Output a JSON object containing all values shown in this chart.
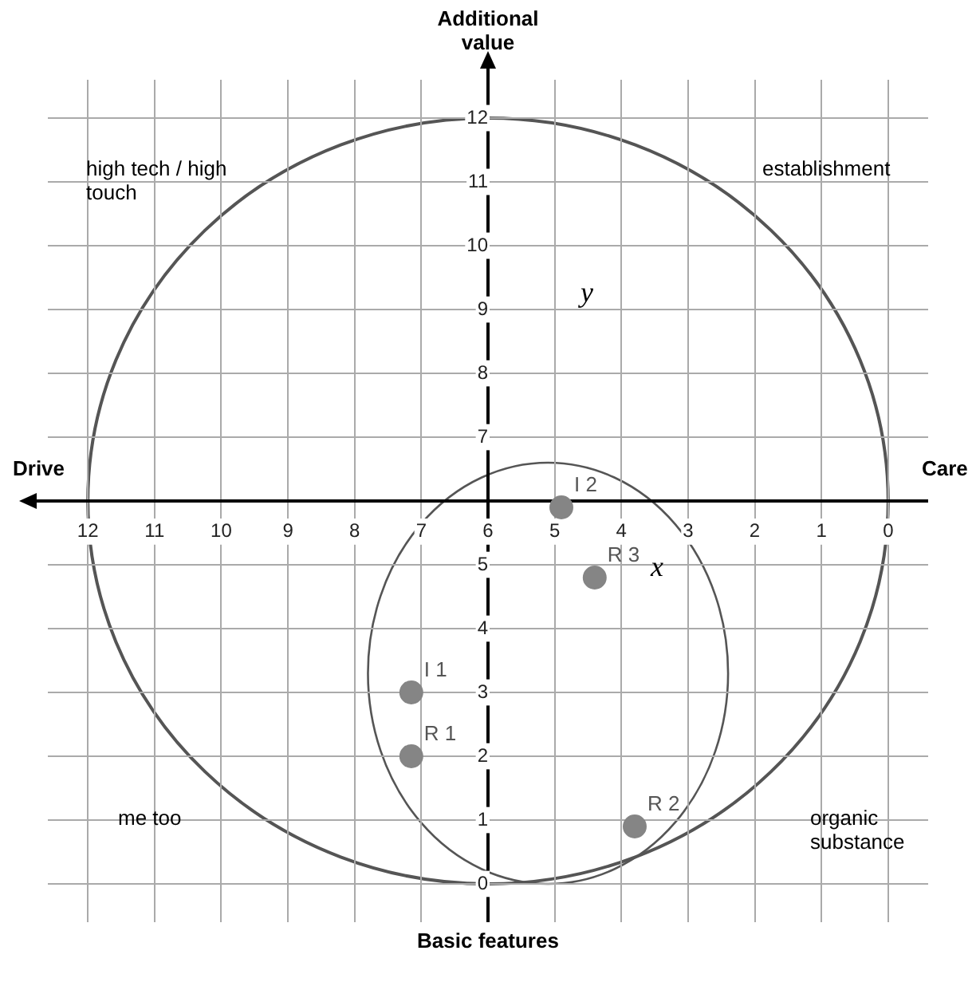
{
  "chart_data": {
    "type": "scatter",
    "ylabel": "Additional value",
    "xlim": [
      12.6,
      -0.6
    ],
    "ylim": [
      -0.6,
      12.6
    ],
    "xticks": [
      12,
      11,
      10,
      9,
      8,
      7,
      6,
      5,
      4,
      3,
      2,
      1,
      0
    ],
    "yticks": [
      0,
      1,
      2,
      3,
      4,
      5,
      {
        "value": 6,
        "label": null
      },
      7,
      8,
      9,
      10,
      11,
      12
    ],
    "series": [
      {
        "color": "#858585",
        "x": [
          4.9,
          4.4,
          7.15,
          7.15,
          3.8
        ],
        "values": [
          5.9,
          4.8,
          3,
          2,
          0.9
        ]
      }
    ],
    "annotations": [
      "Basic features",
      "Drive",
      "Care",
      "high tech / high touch",
      "establishment",
      "me too",
      "organic substance",
      "x",
      "y",
      {
        "text": "I 2",
        "x": 4.9,
        "y": 5.9
      },
      {
        "text": "R 3",
        "x": 4.4,
        "y": 4.8
      },
      {
        "text": "I 1",
        "x": 7.15,
        "y": 3
      },
      {
        "text": "R 1",
        "x": 7.15,
        "y": 2
      },
      {
        "text": "R 2",
        "x": 3.8,
        "y": 0.9
      }
    ],
    "grid": true,
    "legend": false,
    "marker": "circle"
  }
}
